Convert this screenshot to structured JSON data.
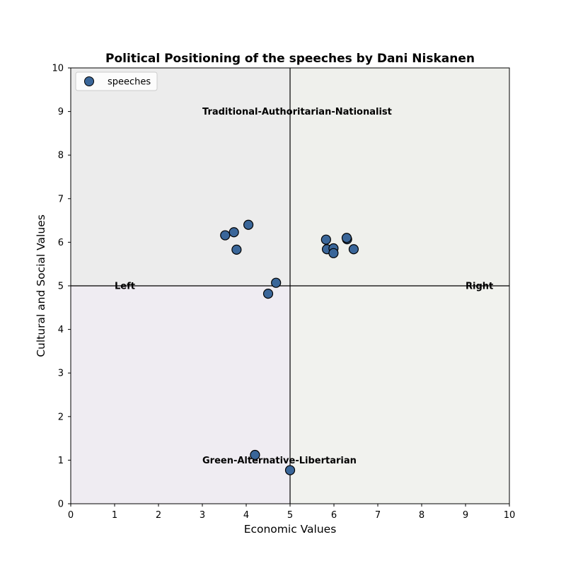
{
  "chart_data": {
    "type": "scatter",
    "title": "Political Positioning of the speeches by Dani Niskanen",
    "xlabel": "Economic Values",
    "ylabel": "Cultural and Social Values",
    "xlim": [
      0,
      10
    ],
    "ylim": [
      0,
      10
    ],
    "xticks": [
      0,
      1,
      2,
      3,
      4,
      5,
      6,
      7,
      8,
      9,
      10
    ],
    "yticks": [
      0,
      1,
      2,
      3,
      4,
      5,
      6,
      7,
      8,
      9,
      10
    ],
    "grid": false,
    "legend_position": "upper-left",
    "quadrant_colors": {
      "top_left": "#ececec",
      "top_right": "#eff0ec",
      "bottom_left": "#efecf2",
      "bottom_right": "#f1f2ee"
    },
    "divider_lines": {
      "x": 5,
      "y": 5
    },
    "annotations": [
      {
        "text": "Traditional-Authoritarian-Nationalist",
        "x": 3,
        "y": 9,
        "weight": "bold"
      },
      {
        "text": "Green-Alternative-Libertarian",
        "x": 3,
        "y": 1,
        "weight": "bold"
      },
      {
        "text": "Left",
        "x": 1,
        "y": 5,
        "weight": "bold"
      },
      {
        "text": "Right",
        "x": 9,
        "y": 5,
        "weight": "bold"
      }
    ],
    "series": [
      {
        "name": "speeches",
        "color": "#3a6699",
        "edge_color": "#000000",
        "points": [
          {
            "x": 3.52,
            "y": 6.16
          },
          {
            "x": 3.72,
            "y": 6.23
          },
          {
            "x": 3.78,
            "y": 5.83
          },
          {
            "x": 4.05,
            "y": 6.4
          },
          {
            "x": 4.68,
            "y": 5.07
          },
          {
            "x": 4.5,
            "y": 4.82
          },
          {
            "x": 5.82,
            "y": 6.06
          },
          {
            "x": 5.84,
            "y": 5.84
          },
          {
            "x": 5.99,
            "y": 5.86
          },
          {
            "x": 5.99,
            "y": 5.75
          },
          {
            "x": 6.3,
            "y": 6.07
          },
          {
            "x": 6.29,
            "y": 6.1
          },
          {
            "x": 6.45,
            "y": 5.84
          },
          {
            "x": 4.2,
            "y": 1.12
          },
          {
            "x": 5.0,
            "y": 0.77
          }
        ]
      }
    ]
  }
}
